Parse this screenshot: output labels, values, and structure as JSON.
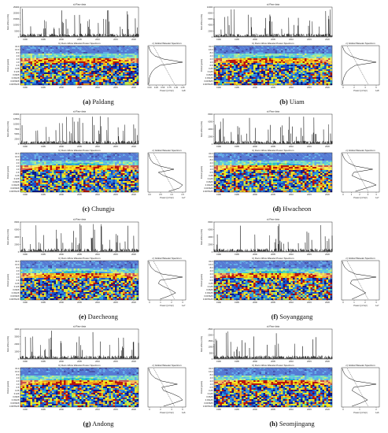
{
  "chart_data": [
    {
      "type": "line",
      "panel_letter": "(a)",
      "station": "Paldang",
      "title_raw": "a) Raw data",
      "ylabel_raw": "Dam inflow (m³/s)",
      "raw_yticks": [
        "25000",
        "20000",
        "15000",
        "10000",
        "5000",
        "0"
      ],
      "title_wavelet": "b) Dam inflow Wavelet Power Spectrum",
      "ylabel_wavelet": "Period (years)",
      "period_ticks": [
        "32.0",
        "16.0",
        "8.0",
        "4.0",
        "2.0",
        "1.0",
        "0.5",
        "0.25",
        "0.125",
        "0.0625",
        "0.03125",
        "0.015625",
        "0.0078125"
      ],
      "year_ticks": [
        "1990",
        "1995",
        "2000",
        "2005",
        "2010",
        "2015",
        "2020"
      ],
      "title_global": "c) Global Wavelet Spectrum",
      "xlabel_global": "Power ((m³/s)²)",
      "global_xticks": [
        "0.00",
        "0.25",
        "0.50",
        "0.75",
        "1.00",
        "1.25"
      ],
      "global_scale": "1e8",
      "series": [
        {
          "values": [
            0.02,
            0.05,
            0.1,
            0.2,
            0.45,
            1.0,
            0.35,
            0.2,
            0.12,
            0.07,
            0.04,
            0.03,
            0.02
          ]
        }
      ]
    },
    {
      "type": "line",
      "panel_letter": "(b)",
      "station": "Uiam",
      "title_raw": "a) Raw data",
      "ylabel_raw": "Dam inflow (m³/s)",
      "raw_yticks": [
        "10000",
        "8000",
        "6000",
        "4000",
        "2000",
        "0"
      ],
      "title_wavelet": "b) Dam inflow Wavelet Power Spectrum",
      "ylabel_wavelet": "Period (years)",
      "period_ticks": [
        "32.0",
        "16.0",
        "8.0",
        "4.0",
        "2.0",
        "1.0",
        "0.5",
        "0.25",
        "0.125",
        "0.0625",
        "0.03125",
        "0.015625",
        "0.0078125"
      ],
      "year_ticks": [
        "1990",
        "1995",
        "2000",
        "2005",
        "2010",
        "2015",
        "2020"
      ],
      "title_global": "c) Global Wavelet Spectrum",
      "xlabel_global": "Power ((m³/s)²)",
      "global_xticks": [
        "0",
        "2",
        "4",
        "6"
      ],
      "global_scale": "1e8",
      "series": [
        {
          "values": [
            0.03,
            0.06,
            0.12,
            0.25,
            0.5,
            1.0,
            0.4,
            0.25,
            0.15,
            0.1,
            0.06,
            0.04,
            0.03
          ]
        }
      ]
    },
    {
      "type": "line",
      "panel_letter": "(c)",
      "station": "Chungju",
      "title_raw": "a) Raw data",
      "ylabel_raw": "Dam inflow (m³/s)",
      "raw_yticks": [
        "15000",
        "12500",
        "10000",
        "7500",
        "5000",
        "2500",
        "0"
      ],
      "title_wavelet": "b) Dam inflow Wavelet Power Spectrum",
      "ylabel_wavelet": "Period (years)",
      "period_ticks": [
        "32.0",
        "16.0",
        "8.0",
        "4.0",
        "2.0",
        "1.0",
        "0.5",
        "0.25",
        "0.125",
        "0.0625",
        "0.03125",
        "0.015625",
        "0.0078125"
      ],
      "year_ticks": [
        "1990",
        "1995",
        "2000",
        "2005",
        "2010",
        "2015",
        "2020"
      ],
      "title_global": "c) Global Wavelet Spectrum",
      "xlabel_global": "Power ((m³/s)²)",
      "global_xticks": [
        "0.0",
        "0.5",
        "1.0",
        "1.5"
      ],
      "global_scale": "1e7",
      "series": [
        {
          "values": [
            0.02,
            0.04,
            0.08,
            0.15,
            0.35,
            0.75,
            0.3,
            0.45,
            0.7,
            0.85,
            1.0,
            0.9,
            0.6
          ]
        }
      ]
    },
    {
      "type": "line",
      "panel_letter": "(d)",
      "station": "Hwacheon",
      "title_raw": "a) Raw data",
      "ylabel_raw": "Dam inflow (m³/s)",
      "raw_yticks": [
        "8000",
        "6000",
        "4000",
        "2000",
        "0"
      ],
      "title_wavelet": "b) Dam inflow Wavelet Power Spectrum",
      "ylabel_wavelet": "Period (years)",
      "period_ticks": [
        "32.0",
        "16.0",
        "8.0",
        "4.0",
        "2.0",
        "1.0",
        "0.5",
        "0.25",
        "0.125",
        "0.0625",
        "0.03125",
        "0.015625",
        "0.0078125"
      ],
      "year_ticks": [
        "1990",
        "1995",
        "2000",
        "2005",
        "2010",
        "2015",
        "2020"
      ],
      "title_global": "c) Global Wavelet Spectrum",
      "xlabel_global": "Power ((m³/s)²)",
      "global_xticks": [
        "0",
        "1",
        "2",
        "3",
        "4"
      ],
      "global_scale": "1e7",
      "series": [
        {
          "values": [
            0.02,
            0.05,
            0.1,
            0.2,
            0.4,
            0.9,
            0.35,
            0.3,
            0.5,
            0.8,
            1.0,
            0.7,
            0.4
          ]
        }
      ]
    },
    {
      "type": "line",
      "panel_letter": "(e)",
      "station": "Daecheong",
      "title_raw": "a) Raw data",
      "ylabel_raw": "Dam inflow (m³/s)",
      "raw_yticks": [
        "8000",
        "6000",
        "4000",
        "2000",
        "0"
      ],
      "title_wavelet": "b) Dam inflow Wavelet Power Spectrum",
      "ylabel_wavelet": "Period (years)",
      "period_ticks": [
        "32.0",
        "16.0",
        "8.0",
        "4.0",
        "2.0",
        "1.0",
        "0.5",
        "0.25",
        "0.125",
        "0.0625",
        "0.03125",
        "0.015625",
        "0.0078125"
      ],
      "year_ticks": [
        "1990",
        "1995",
        "2000",
        "2005",
        "2010",
        "2015",
        "2020"
      ],
      "title_global": "c) Global Wavelet Spectrum",
      "xlabel_global": "Power ((m³/s)²)",
      "global_xticks": [
        "0",
        "1",
        "2",
        "3"
      ],
      "global_scale": "1e7",
      "series": [
        {
          "values": [
            0.02,
            0.05,
            0.1,
            0.2,
            0.4,
            1.0,
            0.35,
            0.3,
            0.45,
            0.65,
            0.8,
            0.6,
            0.35
          ]
        }
      ]
    },
    {
      "type": "line",
      "panel_letter": "(f)",
      "station": "Soyanggang",
      "title_raw": "a) Raw data",
      "ylabel_raw": "Dam inflow (m³/s)",
      "raw_yticks": [
        "8000",
        "6000",
        "4000",
        "2000",
        "0"
      ],
      "title_wavelet": "b) Dam inflow Wavelet Power Spectrum",
      "ylabel_wavelet": "Period (years)",
      "period_ticks": [
        "32.0",
        "16.0",
        "8.0",
        "4.0",
        "2.0",
        "1.0",
        "0.5",
        "0.25",
        "0.125",
        "0.0625",
        "0.03125",
        "0.015625",
        "0.0078125"
      ],
      "year_ticks": [
        "1990",
        "1995",
        "2000",
        "2005",
        "2010",
        "2015",
        "2020"
      ],
      "title_global": "c) Global Wavelet Spectrum",
      "xlabel_global": "Power ((m³/s)²)",
      "global_xticks": [
        "0",
        "1",
        "2",
        "3"
      ],
      "global_scale": "1e7",
      "series": [
        {
          "values": [
            0.02,
            0.05,
            0.1,
            0.2,
            0.4,
            1.0,
            0.3,
            0.25,
            0.4,
            0.55,
            0.7,
            0.5,
            0.3
          ]
        }
      ]
    },
    {
      "type": "line",
      "panel_letter": "(g)",
      "station": "Andong",
      "title_raw": "a) Raw data",
      "ylabel_raw": "Dam inflow (m³/s)",
      "raw_yticks": [
        "4000",
        "3000",
        "2000",
        "1000",
        "0"
      ],
      "title_wavelet": "b) Dam inflow Wavelet Power Spectrum",
      "ylabel_wavelet": "Period (years)",
      "period_ticks": [
        "32.0",
        "16.0",
        "8.0",
        "4.0",
        "2.0",
        "1.0",
        "0.5",
        "0.25",
        "0.125",
        "0.0625",
        "0.03125",
        "0.015625",
        "0.0078125"
      ],
      "year_ticks": [
        "1990",
        "1995",
        "2000",
        "2005",
        "2010",
        "2015",
        "2020"
      ],
      "title_global": "c) Global Wavelet Spectrum",
      "xlabel_global": "Power ((m³/s)²)",
      "global_xticks": [
        "0",
        "2",
        "4",
        "6"
      ],
      "global_scale": "1e6",
      "series": [
        {
          "values": [
            0.02,
            0.05,
            0.1,
            0.2,
            0.4,
            0.85,
            0.4,
            0.45,
            0.7,
            0.9,
            1.0,
            0.75,
            0.45
          ]
        }
      ]
    },
    {
      "type": "line",
      "panel_letter": "(h)",
      "station": "Seomjingang",
      "title_raw": "a) Raw data",
      "ylabel_raw": "Dam inflow (m³/s)",
      "raw_yticks": [
        "2500",
        "2000",
        "1500",
        "1000",
        "500",
        "0"
      ],
      "title_wavelet": "b) Dam inflow Wavelet Power Spectrum",
      "ylabel_wavelet": "Period (years)",
      "period_ticks": [
        "32.0",
        "16.0",
        "8.0",
        "4.0",
        "2.0",
        "1.0",
        "0.5",
        "0.25",
        "0.125",
        "0.0625",
        "0.03125",
        "0.015625",
        "0.0078125"
      ],
      "year_ticks": [
        "1990",
        "1995",
        "2000",
        "2005",
        "2010",
        "2015",
        "2020"
      ],
      "title_global": "c) Global Wavelet Spectrum",
      "xlabel_global": "Power ((m³/s)²)",
      "global_xticks": [
        "0",
        "1",
        "2"
      ],
      "global_scale": "1e6",
      "series": [
        {
          "values": [
            0.02,
            0.05,
            0.1,
            0.2,
            0.4,
            1.0,
            0.35,
            0.3,
            0.45,
            0.6,
            0.75,
            0.55,
            0.3
          ]
        }
      ]
    }
  ],
  "colors": {
    "raw_line": "#000000",
    "power_low": "#0a1a8c",
    "power_mid": "#27c1c9",
    "power_high": "#f2e81e",
    "power_peak": "#b8140f",
    "coi_hatch": "#ffffff",
    "dashed_significance": "#000000"
  }
}
